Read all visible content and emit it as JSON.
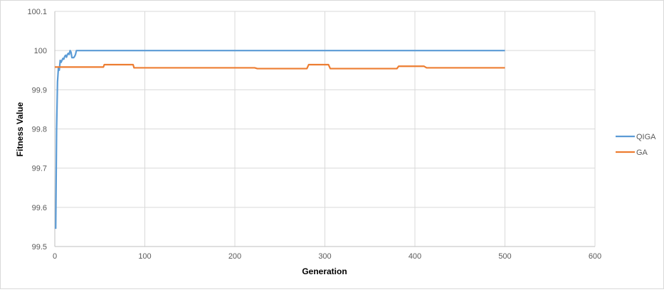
{
  "chart_data": {
    "type": "line",
    "xlabel": "Generation",
    "ylabel": "Fitness Value",
    "xlim": [
      0,
      600
    ],
    "ylim": [
      99.5,
      100.1
    ],
    "x_ticks": [
      "0",
      "100",
      "200",
      "300",
      "400",
      "500",
      "600"
    ],
    "y_ticks": [
      "99.5",
      "99.6",
      "99.7",
      "99.8",
      "99.9",
      "100",
      "100.1"
    ],
    "grid": true,
    "legend_position": "right",
    "series": [
      {
        "name": "QIGA",
        "color": "#5B9BD5",
        "points": [
          [
            1,
            99.545
          ],
          [
            2,
            99.8
          ],
          [
            3,
            99.92
          ],
          [
            4,
            99.955
          ],
          [
            5,
            99.95
          ],
          [
            6,
            99.975
          ],
          [
            7,
            99.97
          ],
          [
            8,
            99.975
          ],
          [
            9,
            99.98
          ],
          [
            10,
            99.978
          ],
          [
            11,
            99.985
          ],
          [
            12,
            99.988
          ],
          [
            13,
            99.983
          ],
          [
            14,
            99.99
          ],
          [
            15,
            99.993
          ],
          [
            16,
            99.99
          ],
          [
            17,
            100.0
          ],
          [
            18,
            99.996
          ],
          [
            19,
            99.982
          ],
          [
            20,
            99.982
          ],
          [
            21,
            99.982
          ],
          [
            22,
            99.985
          ],
          [
            23,
            99.99
          ],
          [
            24,
            100.0
          ],
          [
            25,
            100.0
          ],
          [
            100,
            100.0
          ],
          [
            200,
            100.0
          ],
          [
            300,
            100.0
          ],
          [
            400,
            100.0
          ],
          [
            500,
            100.0
          ]
        ]
      },
      {
        "name": "GA",
        "color": "#ED7D31",
        "points": [
          [
            0,
            99.958
          ],
          [
            54,
            99.958
          ],
          [
            55,
            99.964
          ],
          [
            87,
            99.964
          ],
          [
            88,
            99.956
          ],
          [
            222,
            99.956
          ],
          [
            225,
            99.954
          ],
          [
            280,
            99.954
          ],
          [
            282,
            99.964
          ],
          [
            304,
            99.964
          ],
          [
            306,
            99.954
          ],
          [
            380,
            99.954
          ],
          [
            382,
            99.96
          ],
          [
            410,
            99.96
          ],
          [
            413,
            99.956
          ],
          [
            500,
            99.956
          ]
        ]
      }
    ]
  }
}
